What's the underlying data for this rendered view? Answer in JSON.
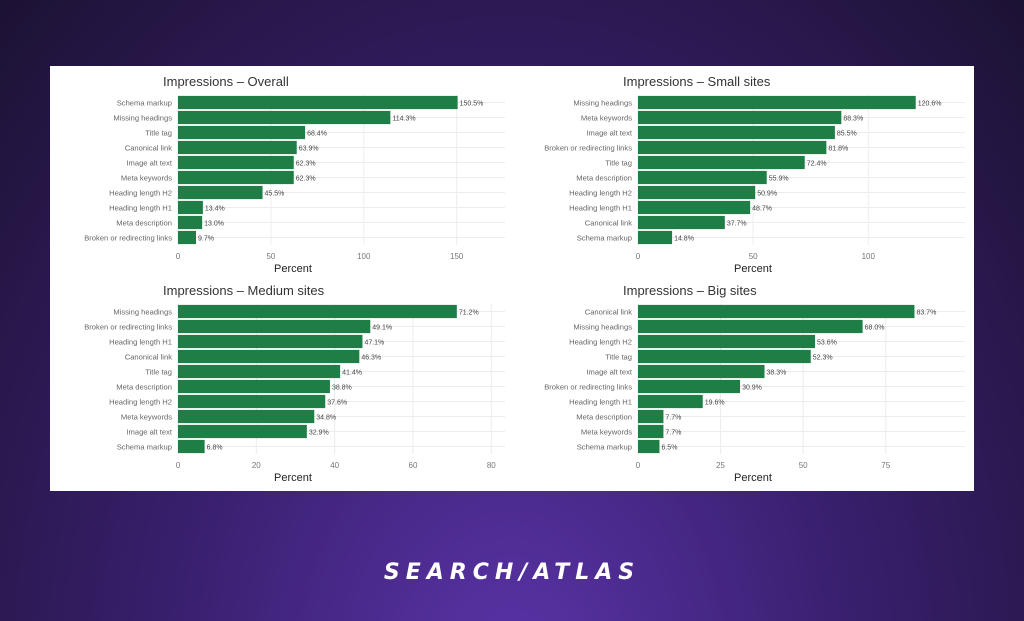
{
  "brand": {
    "logo_text": "SEARCH/ATLAS"
  },
  "colors": {
    "bar": "#1f7d46",
    "grid": "#ececec"
  },
  "chart_data": [
    {
      "type": "bar",
      "orientation": "horizontal",
      "title": "Impressions – Overall",
      "xlabel": "Percent",
      "xlim": [
        0,
        176
      ],
      "ticks": [
        0,
        50,
        100,
        150
      ],
      "categories": [
        "Schema markup",
        "Missing headings",
        "Title tag",
        "Canonical link",
        "Image alt text",
        "Meta keywords",
        "Heading length H2",
        "Heading length H1",
        "Meta description",
        "Broken or redirecting links"
      ],
      "values": [
        150.5,
        114.3,
        68.4,
        63.9,
        62.3,
        62.3,
        45.5,
        13.4,
        13.0,
        9.7
      ],
      "labels": [
        "150.5%",
        "114.3%",
        "68.4%",
        "63.9%",
        "62.3%",
        "62.3%",
        "45.5%",
        "13.4%",
        "13.0%",
        "9.7%"
      ]
    },
    {
      "type": "bar",
      "orientation": "horizontal",
      "title": "Impressions – Small sites",
      "xlabel": "Percent",
      "xlim": [
        0,
        142
      ],
      "ticks": [
        0,
        50,
        100
      ],
      "categories": [
        "Missing headings",
        "Meta keywords",
        "Image alt text",
        "Broken or redirecting links",
        "Title tag",
        "Meta description",
        "Heading length H2",
        "Heading length H1",
        "Canonical link",
        "Schema markup"
      ],
      "values": [
        120.6,
        88.3,
        85.5,
        81.8,
        72.4,
        55.9,
        50.9,
        48.7,
        37.7,
        14.8
      ],
      "labels": [
        "120.6%",
        "88.3%",
        "85.5%",
        "81.8%",
        "72.4%",
        "55.9%",
        "50.9%",
        "48.7%",
        "37.7%",
        "14.8%"
      ]
    },
    {
      "type": "bar",
      "orientation": "horizontal",
      "title": "Impressions – Medium sites",
      "xlabel": "Percent",
      "xlim": [
        0,
        83.5
      ],
      "ticks": [
        0,
        20,
        40,
        60,
        80
      ],
      "categories": [
        "Missing headings",
        "Broken or redirecting links",
        "Heading length H1",
        "Canonical link",
        "Title tag",
        "Meta description",
        "Heading length H2",
        "Meta keywords",
        "Image alt text",
        "Schema markup"
      ],
      "values": [
        71.2,
        49.1,
        47.1,
        46.3,
        41.4,
        38.8,
        37.6,
        34.8,
        32.9,
        6.8
      ],
      "labels": [
        "71.2%",
        "49.1%",
        "47.1%",
        "46.3%",
        "41.4%",
        "38.8%",
        "37.6%",
        "34.8%",
        "32.9%",
        "6.8%"
      ]
    },
    {
      "type": "bar",
      "orientation": "horizontal",
      "title": "Impressions – Big sites",
      "xlabel": "Percent",
      "xlim": [
        0,
        99
      ],
      "ticks": [
        0,
        25,
        50,
        75
      ],
      "categories": [
        "Canonical link",
        "Missing headings",
        "Heading length H2",
        "Title tag",
        "Image alt text",
        "Broken or redirecting links",
        "Heading length H1",
        "Meta description",
        "Meta keywords",
        "Schema markup"
      ],
      "values": [
        83.7,
        68.0,
        53.6,
        52.3,
        38.3,
        30.9,
        19.6,
        7.7,
        7.7,
        6.5
      ],
      "labels": [
        "83.7%",
        "68.0%",
        "53.6%",
        "52.3%",
        "38.3%",
        "30.9%",
        "19.6%",
        "7.7%",
        "7.7%",
        "6.5%"
      ]
    }
  ]
}
